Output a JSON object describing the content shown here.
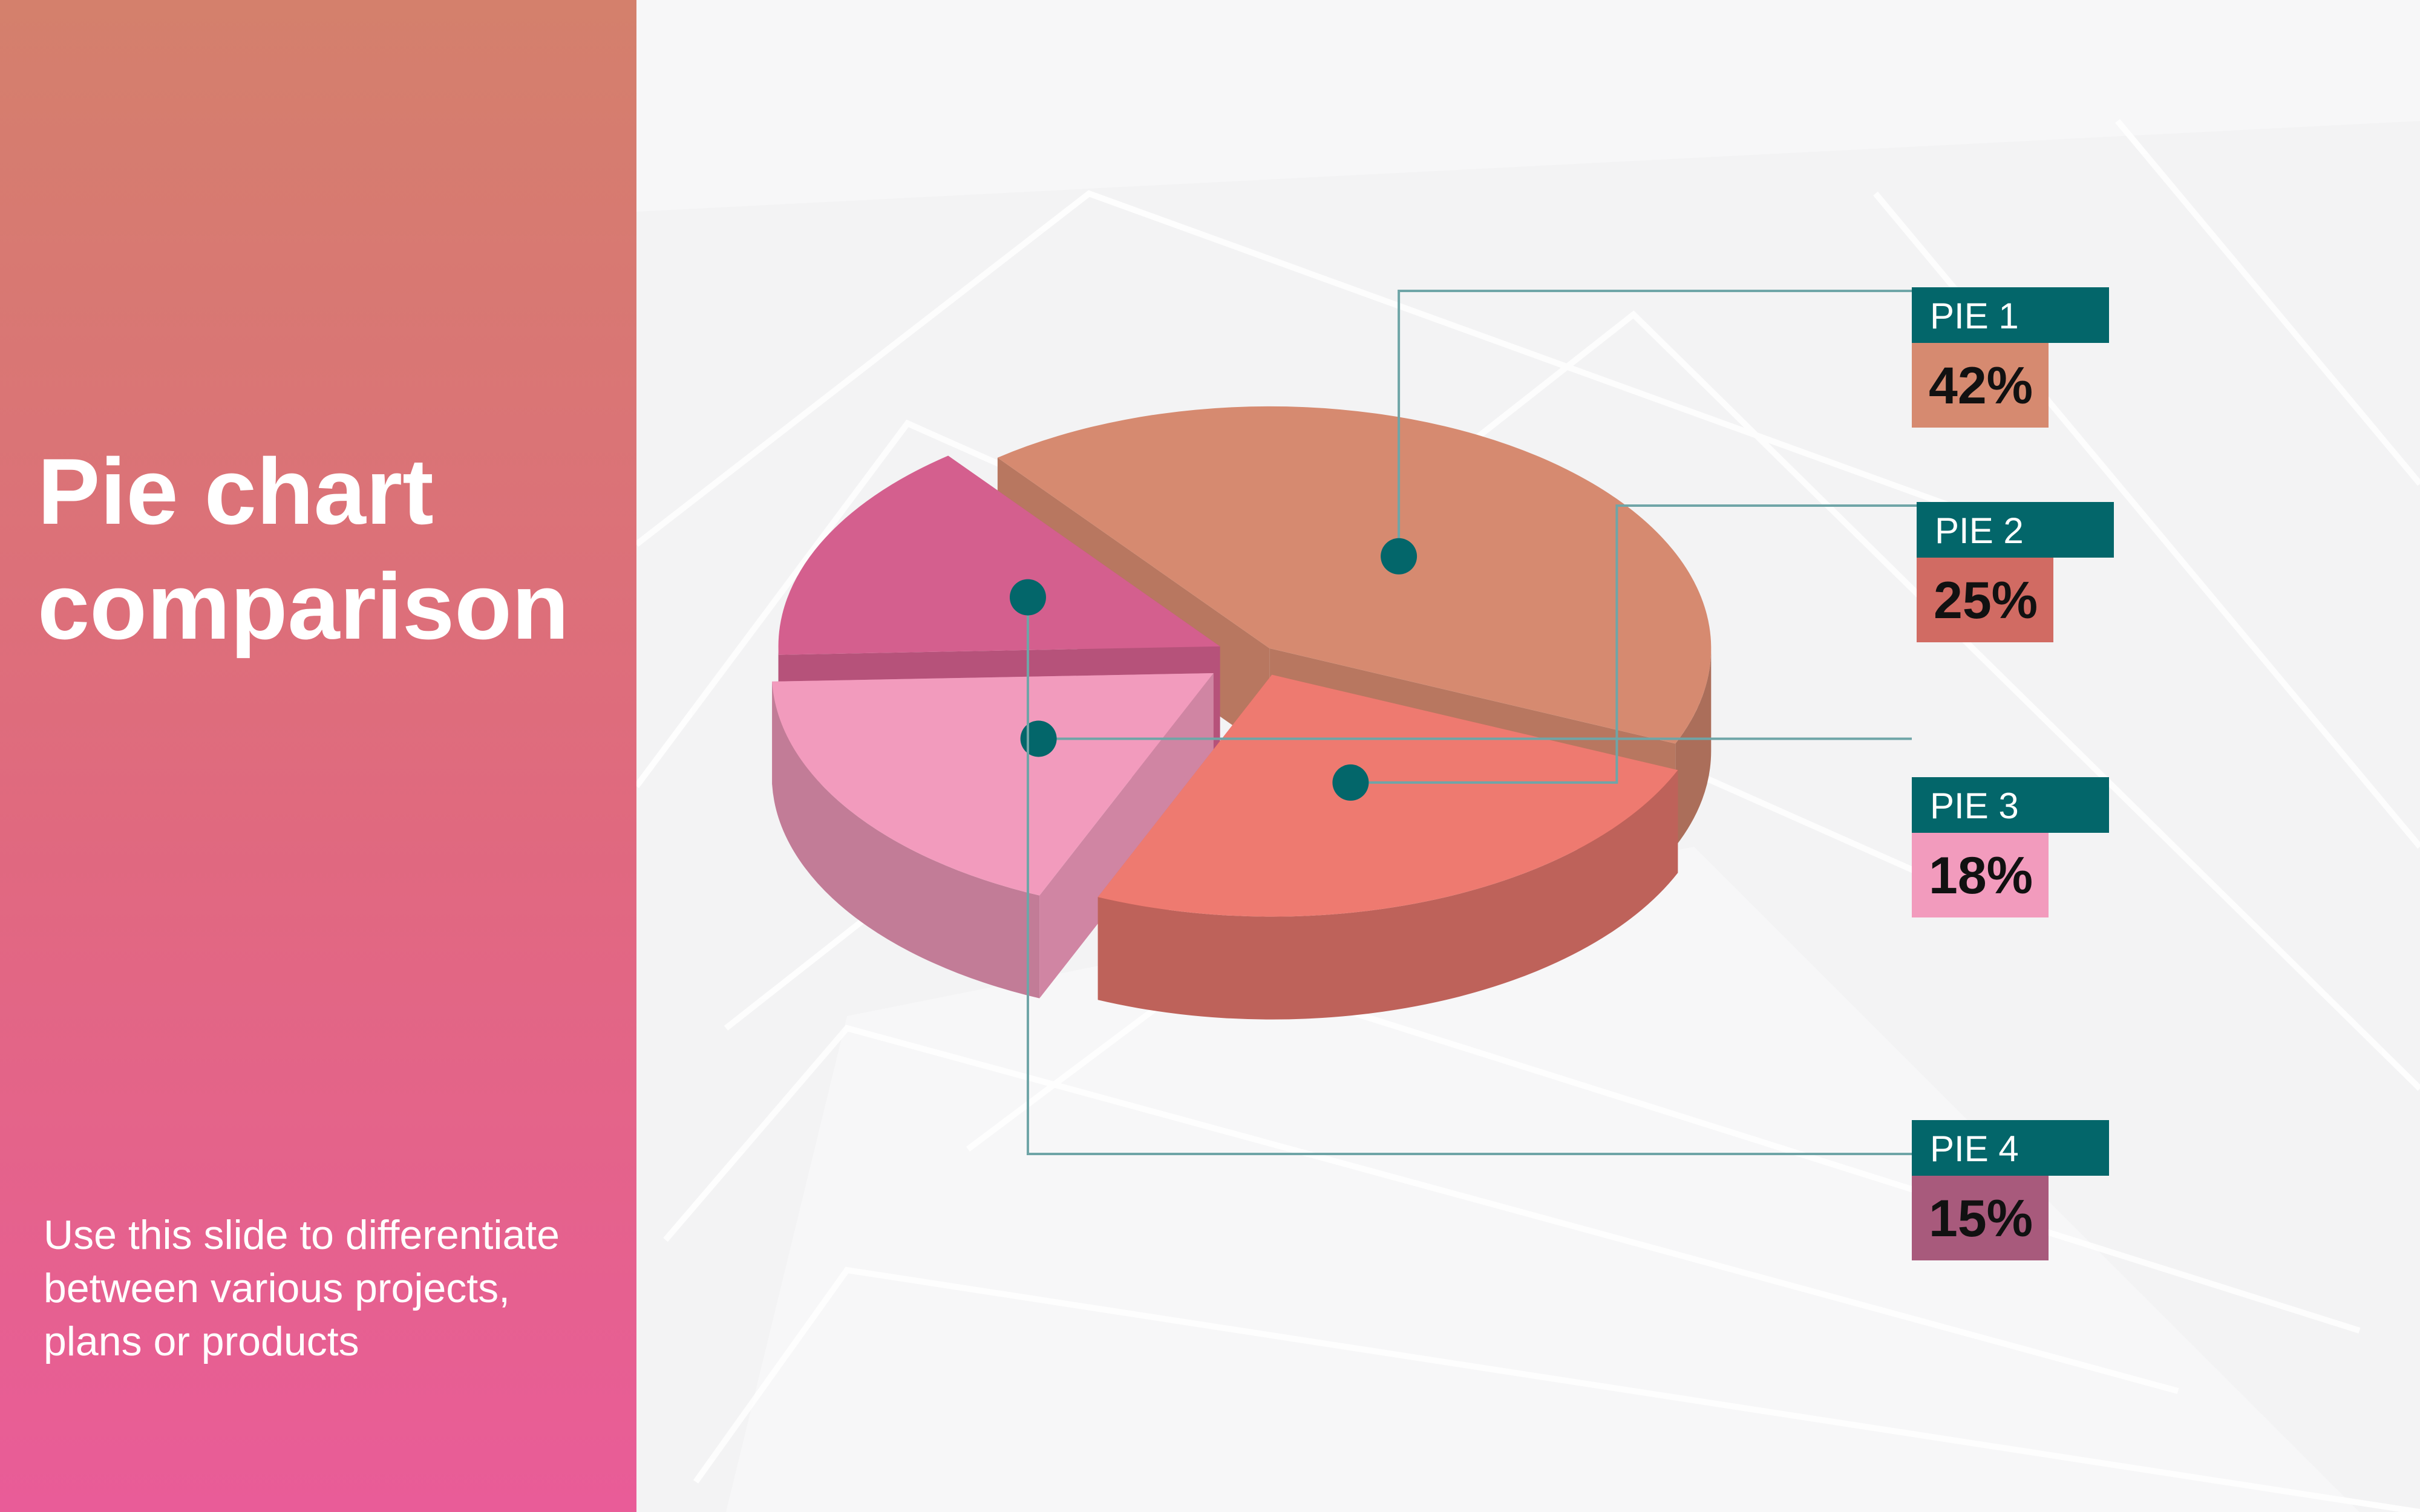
{
  "slide": {
    "title_line1": "Pie chart",
    "title_line2": "comparison",
    "subtitle_line1": "Use this slide to differentiate",
    "subtitle_line2": "between various projects,",
    "subtitle_line3": "plans or products"
  },
  "colors": {
    "sidebar_top": "#d4806c",
    "sidebar_bottom": "#e95c98",
    "label_header": "#03666a",
    "marker": "#03666a",
    "pie1": "#d68a70",
    "pie2": "#ee7a70",
    "pie3": "#f29bbd",
    "pie4": "#d45f8e"
  },
  "chart_data": {
    "type": "pie",
    "title": "Pie chart comparison",
    "legend_position": "right",
    "slices": [
      {
        "name": "PIE 1",
        "value": 42,
        "label": "42%",
        "color": "#d68a70"
      },
      {
        "name": "PIE 2",
        "value": 25,
        "label": "25%",
        "color": "#ee7a70"
      },
      {
        "name": "PIE 3",
        "value": 18,
        "label": "18%",
        "color": "#f29bbd"
      },
      {
        "name": "PIE 4",
        "value": 15,
        "label": "15%",
        "color": "#d45f8e"
      }
    ]
  }
}
